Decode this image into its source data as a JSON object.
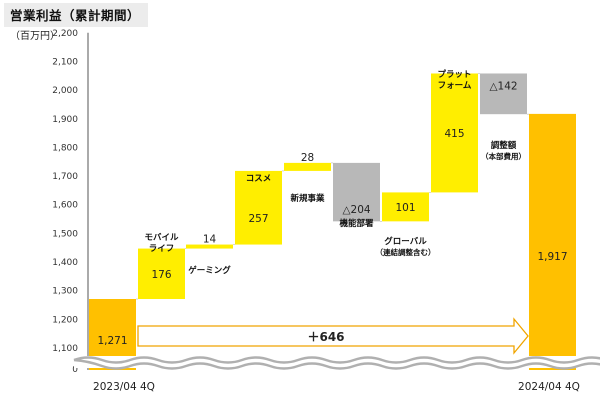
{
  "chart_data": {
    "type": "bar",
    "subtype": "waterfall",
    "title": "営業利益（累計期間）",
    "unit": "（百万円）",
    "ylim": [
      0,
      2200
    ],
    "axis_break": [
      1000,
      1100
    ],
    "yticks": [
      "0",
      "1,100",
      "1,200",
      "1,300",
      "1,400",
      "1,500",
      "1,600",
      "1,700",
      "1,800",
      "1,900",
      "2,000",
      "2,100",
      "2,200"
    ],
    "ytick_values": [
      0,
      1100,
      1200,
      1300,
      1400,
      1500,
      1600,
      1700,
      1800,
      1900,
      2000,
      2100,
      2200
    ],
    "grid": false,
    "bars": [
      {
        "kind": "total",
        "start": 0,
        "end": 1271,
        "label": "1,271",
        "category": "2023/04 4Q",
        "category_lines": [],
        "color": "#ffc000"
      },
      {
        "kind": "increase",
        "start": 1271,
        "end": 1447,
        "label": "176",
        "category": "モバイルライフ",
        "category_lines": [
          "モバイル",
          "ライフ"
        ],
        "category_pos": "above",
        "color": "#ffee00"
      },
      {
        "kind": "increase",
        "start": 1447,
        "end": 1461,
        "label": "14",
        "category": "ゲーミング",
        "category_lines": [
          "ゲーミング"
        ],
        "category_pos": "below",
        "color": "#ffee00"
      },
      {
        "kind": "increase",
        "start": 1461,
        "end": 1718,
        "label": "257",
        "category": "コスメ",
        "category_lines": [
          "コスメ"
        ],
        "category_pos": "inside",
        "color": "#ffee00"
      },
      {
        "kind": "increase",
        "start": 1718,
        "end": 1746,
        "label": "28",
        "category": "新規事業",
        "category_lines": [
          "新規事業"
        ],
        "category_pos": "below",
        "color": "#ffee00"
      },
      {
        "kind": "decrease",
        "start": 1746,
        "end": 1542,
        "label": "△204",
        "category": "機能部署",
        "category_lines": [
          "機能部署"
        ],
        "category_pos": "inside",
        "color": "#b8b8b8"
      },
      {
        "kind": "increase",
        "start": 1542,
        "end": 1643,
        "label": "101",
        "category": "グローバル（連結調整含む）",
        "category_lines": [
          "グローバル",
          "（連結調整含む）"
        ],
        "category_pos": "below",
        "color": "#ffee00"
      },
      {
        "kind": "increase",
        "start": 1643,
        "end": 2058,
        "label": "415",
        "category": "プラットフォーム",
        "category_lines": [
          "プラット",
          "フォーム"
        ],
        "category_pos": "above",
        "color": "#ffee00"
      },
      {
        "kind": "decrease",
        "start": 2058,
        "end": 1916,
        "label": "△142",
        "category": "調整額（本部費用）",
        "category_lines": [
          "調整額",
          "（本部費用）"
        ],
        "category_pos": "below",
        "color": "#b8b8b8"
      },
      {
        "kind": "total",
        "start": 0,
        "end": 1917,
        "label": "1,917",
        "category": "2024/04 4Q",
        "category_lines": [],
        "color": "#ffc000"
      }
    ],
    "annotation": {
      "text": "＋646",
      "value": 646
    },
    "colors": {
      "total": "#ffc000",
      "increase": "#ffee00",
      "decrease": "#b8b8b8",
      "arrow_border": "#f0a500",
      "break_wave": "#b0b0b0"
    }
  }
}
